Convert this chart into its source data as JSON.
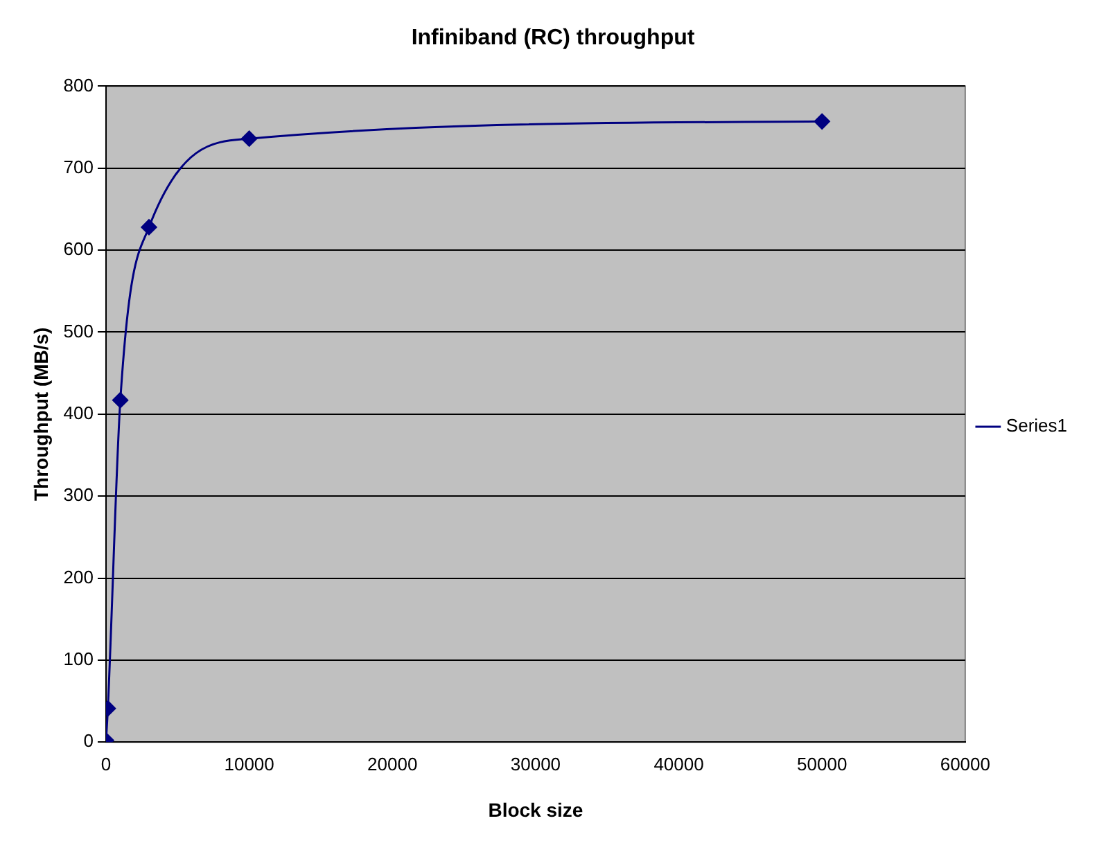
{
  "chart_data": {
    "type": "line",
    "title": "Infiniband (RC) throughput",
    "xlabel": "Block size",
    "ylabel": "Throughput (MB/s)",
    "series": [
      {
        "name": "Series1",
        "color": "#000080",
        "x": [
          1,
          128,
          1000,
          3000,
          10000,
          50000
        ],
        "values": [
          2,
          41,
          417,
          628,
          736,
          757
        ]
      }
    ],
    "xlim": [
      0,
      60000
    ],
    "xticks": [
      0,
      10000,
      20000,
      30000,
      40000,
      50000,
      60000
    ],
    "ylim": [
      0,
      800
    ],
    "yticks": [
      0,
      100,
      200,
      300,
      400,
      500,
      600,
      700,
      800
    ],
    "grid": "y",
    "legend": "right",
    "marker": "diamond",
    "line_style": "solid"
  }
}
